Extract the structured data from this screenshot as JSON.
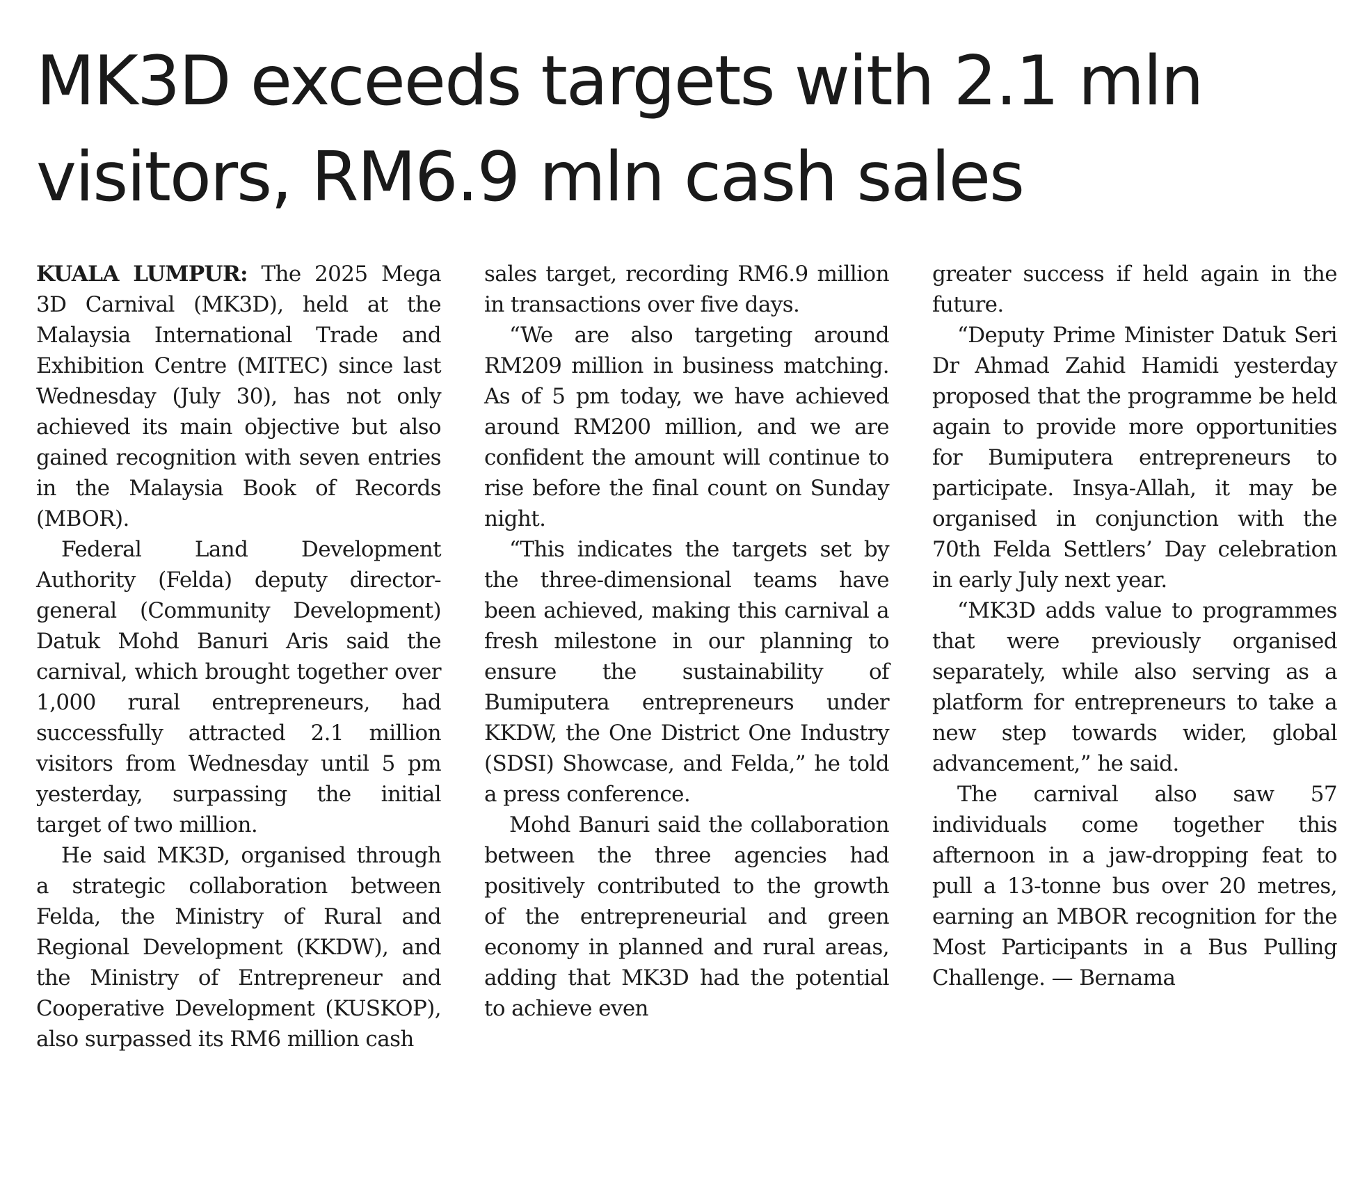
{
  "headline": {
    "line1": "MK3D exceeds targets with 2.1 mln",
    "line2": "visitors, RM6.9 mln cash sales"
  },
  "article": {
    "dateline": "KUALA LUMPUR:",
    "col1": {
      "p1": "The 2025 Mega 3D Carnival (MK3D), held at the Malaysia International Trade and Exhibition Centre (MITEC) since last Wednesday (July 30), has not only achieved its main objective but also gained recognition with seven entries in the Malaysia Book of Records (MBOR).",
      "p2": "Federal Land Development Authority (Felda) deputy director-general (Community Development) Datuk Mohd Banuri Aris said the carnival, which brought together over 1,000 rural entrepreneurs, had successfully attracted 2.1 million visitors from Wednesday until 5 pm yesterday, surpassing the initial target of two million.",
      "p3": "He said MK3D, organised through a strategic collaboration between Felda, the Ministry of Rural and Regional Development (KKDW), and the Ministry of Entrepreneur and Cooperative Development (KUSKOP), also surpassed its RM6 million cash"
    },
    "col2": {
      "p1": "sales target, recording RM6.9 million in transactions over five days.",
      "p2": "“We are also targeting around RM209 million in business matching. As of 5 pm today, we have achieved around RM200 million, and we are confident the amount will continue to rise before the final count on Sunday night.",
      "p3": "“This indicates the targets set by the three-dimensional teams have been achieved, making this carnival a fresh milestone in our planning to ensure the sustainability of Bumiputera entrepreneurs under KKDW, the One District One Industry (SDSI) Showcase, and Felda,” he told a press conference.",
      "p4": "Mohd Banuri said the collaboration between the three agencies had positively contributed to the growth of the entrepreneurial and green economy in planned and rural areas, adding that MK3D had the potential to achieve even"
    },
    "col3": {
      "p1": "greater success if held again in the future.",
      "p2": "“Deputy Prime Minister Datuk Seri Dr Ahmad Zahid Hamidi yesterday proposed that the programme be held again to provide more opportunities for Bumiputera entrepreneurs to participate. Insya-Allah, it may be organised in conjunction with the 70th Felda Settlers’ Day celebration in early July next year.",
      "p3": "“MK3D adds value to programmes that were previously organised separately, while also serving as a platform for entrepreneurs to take a new step towards wider, global advancement,” he said.",
      "p4": "The carnival also saw 57 individuals come together this afternoon in a jaw-dropping feat to pull a 13-tonne bus over 20 metres, earning an MBOR recognition for the Most Participants in a Bus Pulling Challenge. — Bernama"
    }
  }
}
